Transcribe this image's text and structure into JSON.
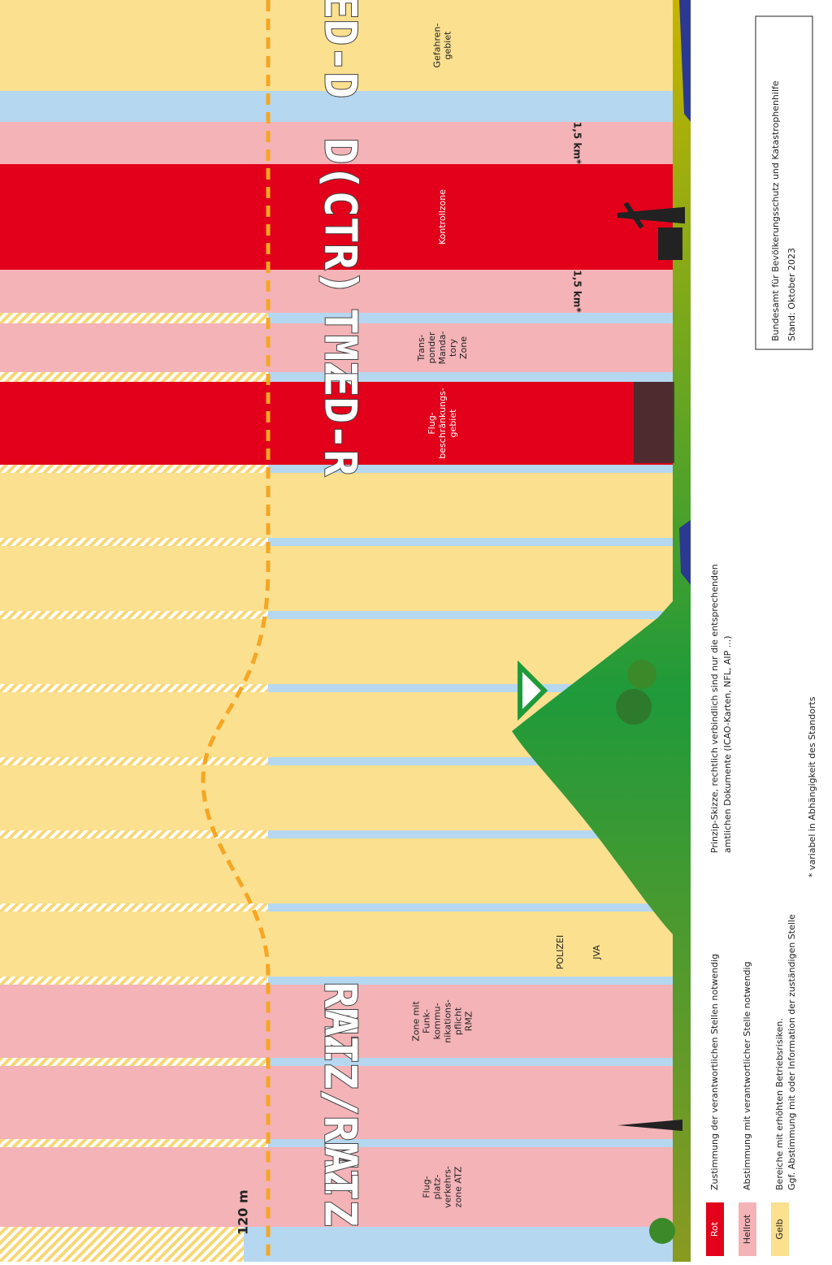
{
  "header": {
    "publisher": "Bundesamt für Bevölkerungsschutz und Katastrophenhilfe",
    "date": "Stand: Oktober 2023"
  },
  "notes": [
    "Prinzip-Skizze, rechtlich verbindlich sind nur die entsprechenden",
    "amtlichen Dokumente (ICAO-Karten, NFL, AIP ...)",
    "* variabel in Abhängigkeit des Standorts"
  ],
  "height_label": "120 m",
  "zones": [
    {
      "code": "ED-D",
      "description": [
        "Gefahren-",
        "gebiet"
      ]
    },
    {
      "distance": "1,5 km*"
    },
    {
      "code": "D(CTR)",
      "description": [
        "Kontrollzone"
      ]
    },
    {
      "distance": "1,5 km*"
    },
    {
      "code": "TMZ",
      "description": [
        "Trans-",
        "ponder",
        "Manda-",
        "tory",
        "Zone"
      ]
    },
    {
      "code": "ED-R",
      "description": [
        "Flug-",
        "beschränkungs-",
        "gebiet"
      ]
    },
    {
      "code": "RMZ",
      "description": [
        "Zone mit",
        "Funk-",
        "kommu-",
        "nikations-",
        "pflicht",
        "RMZ"
      ]
    },
    {
      "code": "ATZ/RMZ"
    },
    {
      "code": "ATZ",
      "description": [
        "Flug-",
        "platz-",
        "verkehrs-",
        "zone ATZ"
      ]
    }
  ],
  "icon_labels": [
    "POLIZEI",
    "JVA"
  ],
  "legend": [
    {
      "label": "Rot",
      "text": [
        "Zustimmung der verantwortlichen Stellen notwendig"
      ]
    },
    {
      "label": "Hellrot",
      "text": [
        "Abstimmung mit verantwortlicher Stelle notwendig"
      ]
    },
    {
      "label": "Gelb",
      "text": [
        "Bereiche mit erhöhten Betriebsrisiken.",
        "Ggf. Abstimmung mit oder Information der zuständigen Stelle"
      ]
    }
  ]
}
